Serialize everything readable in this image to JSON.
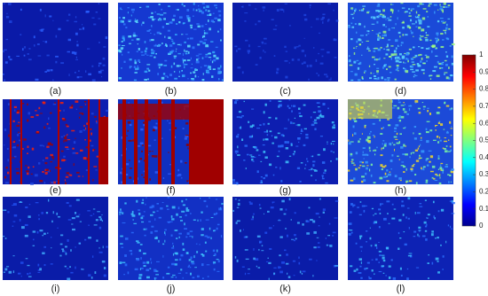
{
  "panels": [
    {
      "label": "(a)"
    },
    {
      "label": "(b)"
    },
    {
      "label": "(c)"
    },
    {
      "label": "(d)"
    },
    {
      "label": "(e)"
    },
    {
      "label": "(f)"
    },
    {
      "label": "(g)"
    },
    {
      "label": "(h)"
    },
    {
      "label": "(i)"
    },
    {
      "label": "(j)"
    },
    {
      "label": "(k)"
    },
    {
      "label": "(l)"
    }
  ],
  "colorbar": {
    "lim": [
      0,
      1
    ],
    "ticks": [
      0,
      0.1,
      0.2,
      0.3,
      0.4,
      0.5,
      0.6,
      0.7,
      0.8,
      0.9,
      1
    ]
  }
}
